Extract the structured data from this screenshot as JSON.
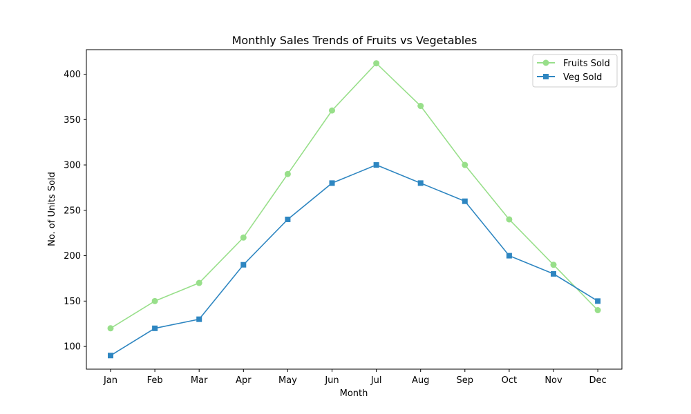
{
  "chart_data": {
    "type": "line",
    "title": "Monthly Sales Trends of Fruits vs Vegetables",
    "xlabel": "Month",
    "ylabel": "No. of Units Sold",
    "categories": [
      "Jan",
      "Feb",
      "Mar",
      "Apr",
      "May",
      "Jun",
      "Jul",
      "Aug",
      "Sep",
      "Oct",
      "Nov",
      "Dec"
    ],
    "yticks": [
      100,
      150,
      200,
      250,
      300,
      350,
      400
    ],
    "ylim": [
      75,
      427
    ],
    "grid": false,
    "legend_position": "top-right",
    "series": [
      {
        "name": "Fruits Sold",
        "marker": "circle",
        "color": "#98df8a",
        "values": [
          120,
          150,
          170,
          220,
          290,
          360,
          412,
          365,
          300,
          240,
          190,
          140
        ]
      },
      {
        "name": "Veg Sold",
        "marker": "square",
        "color": "#2e86c1",
        "values": [
          90,
          120,
          130,
          190,
          240,
          280,
          300,
          280,
          260,
          200,
          180,
          150
        ]
      }
    ]
  }
}
